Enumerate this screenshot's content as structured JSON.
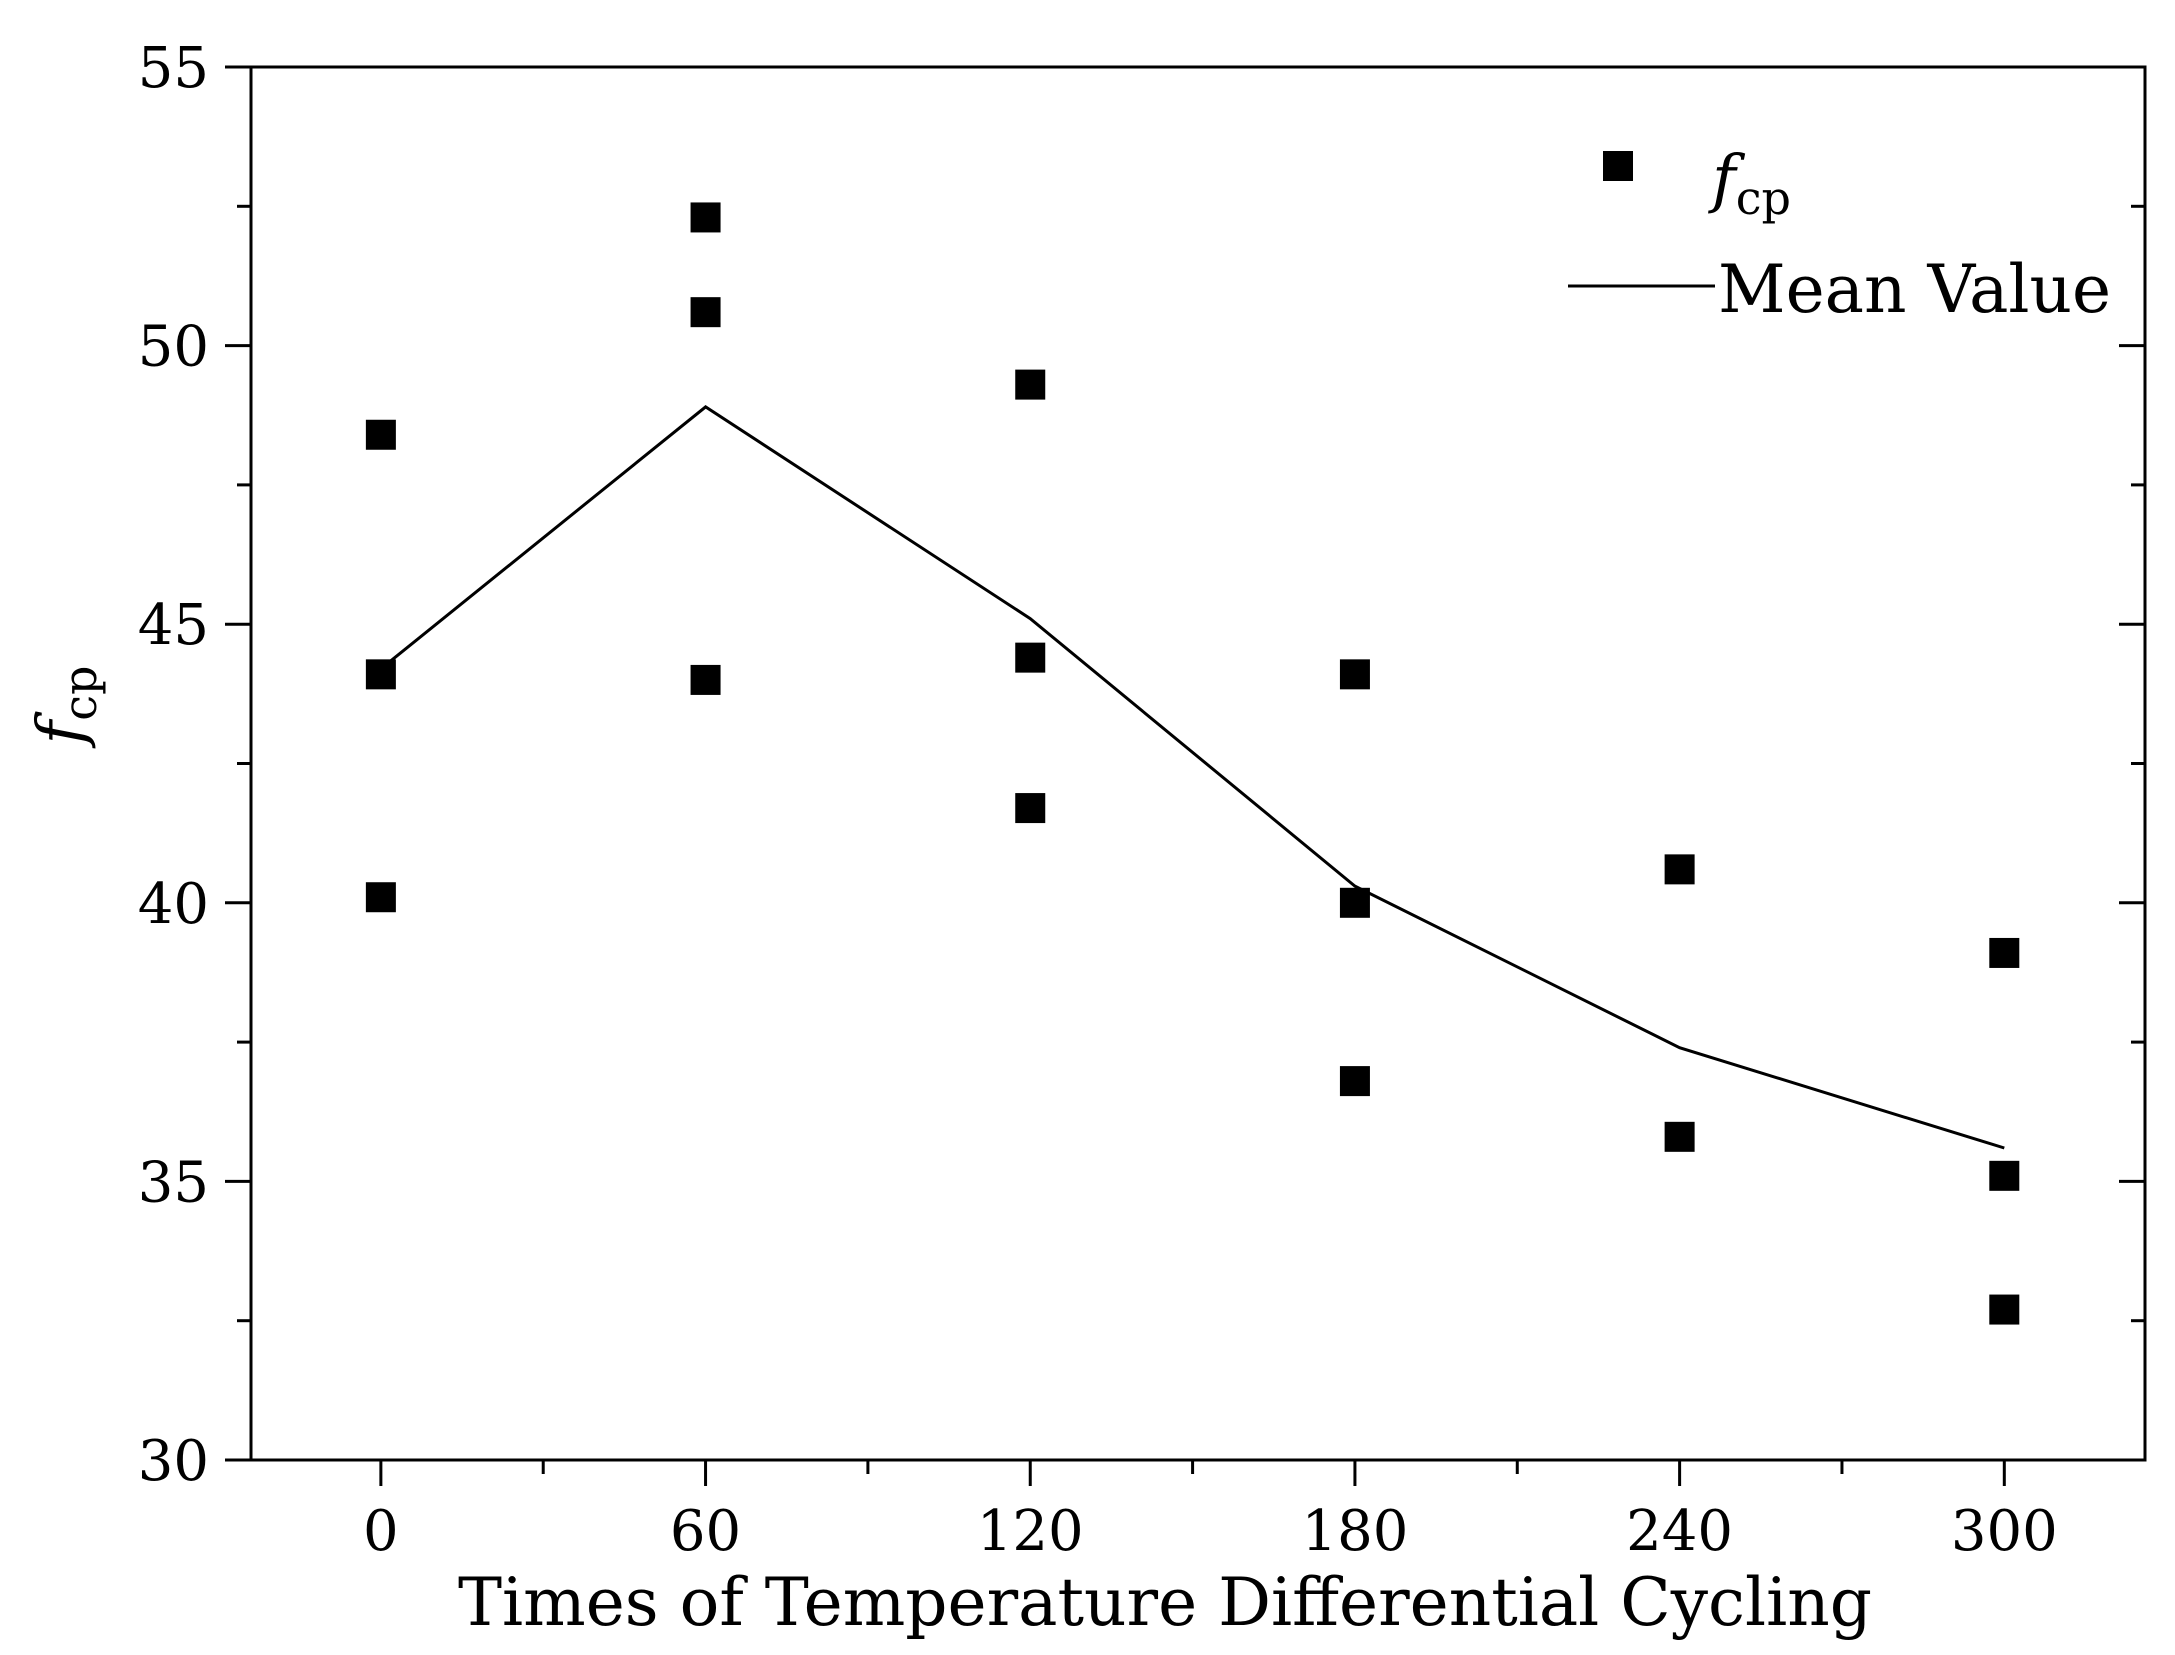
{
  "chart_data": {
    "type": "scatter",
    "title": "",
    "xlabel": "Times of Temperature Differential Cycling",
    "ylabel": {
      "main": "f",
      "sub": "cp"
    },
    "xlim": [
      -24,
      326
    ],
    "ylim": [
      30,
      55
    ],
    "x_ticks": [
      0,
      60,
      120,
      180,
      240,
      300
    ],
    "x_tick_labels": [
      "0",
      "60",
      "120",
      "180",
      "240",
      "300"
    ],
    "y_ticks": [
      30,
      35,
      40,
      45,
      50,
      55
    ],
    "y_tick_labels": [
      "30",
      "35",
      "40",
      "45",
      "50",
      "55"
    ],
    "grid": false,
    "legend_position": "top-right",
    "series": [
      {
        "name": "fcp",
        "legend_main": "f",
        "legend_sub": "cp",
        "kind": "scatter",
        "marker": "square",
        "points": [
          [
            0,
            48.4
          ],
          [
            0,
            44.1
          ],
          [
            0,
            40.1
          ],
          [
            60,
            52.3
          ],
          [
            60,
            50.6
          ],
          [
            60,
            44.0
          ],
          [
            120,
            49.3
          ],
          [
            120,
            44.4
          ],
          [
            120,
            41.7
          ],
          [
            180,
            44.1
          ],
          [
            180,
            40.0
          ],
          [
            180,
            36.8
          ],
          [
            240,
            40.6
          ],
          [
            240,
            35.8
          ],
          [
            300,
            39.1
          ],
          [
            300,
            35.1
          ],
          [
            300,
            32.7
          ]
        ]
      },
      {
        "name": "Mean Value",
        "kind": "line",
        "points": [
          [
            0,
            44.2
          ],
          [
            60,
            48.9
          ],
          [
            120,
            45.1
          ],
          [
            180,
            40.3
          ],
          [
            240,
            37.4
          ],
          [
            300,
            35.6
          ]
        ]
      }
    ]
  }
}
